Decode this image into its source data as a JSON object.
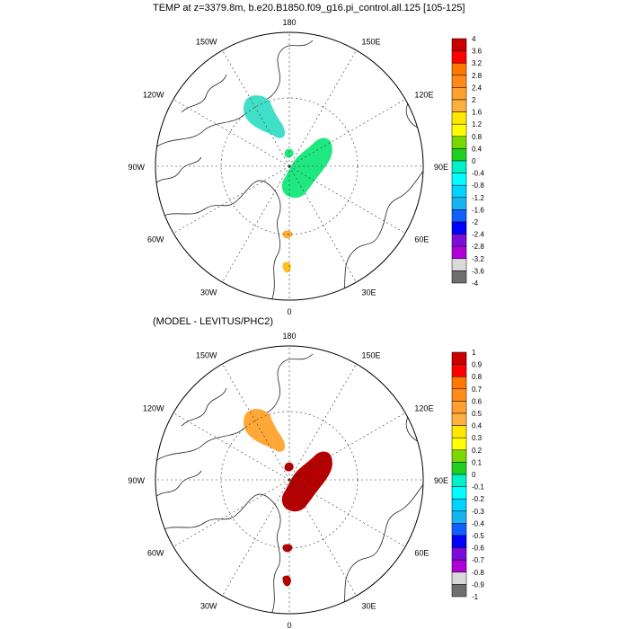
{
  "figure": {
    "top_title": "TEMP at z=3379.8m, b.e20.B1850.f09_g16.pi_control.all.125 [105-125]",
    "bottom_title": "(MODEL - LEVITUS/PHC2)"
  },
  "longitude_labels": [
    "180",
    "150E",
    "120E",
    "90E",
    "60E",
    "30E",
    "0",
    "30W",
    "60W",
    "90W",
    "120W",
    "150W"
  ],
  "colors": {
    "ramp": [
      "#6e6e6e",
      "#d9d9d9",
      "#e000e0",
      "#b000d8",
      "#7a0dd9",
      "#0000ff",
      "#1060ff",
      "#2892f0",
      "#18b4f0",
      "#00d4ff",
      "#00ffff",
      "#00f0c8",
      "#00e878",
      "#20d020",
      "#7ad800",
      "#ffff00",
      "#ffe800",
      "#ffcc30",
      "#ffb040",
      "#ffa030",
      "#ff8c1a",
      "#ff7800",
      "#ff3c00",
      "#ff0000",
      "#c80000"
    ]
  },
  "colorbar_top": {
    "labels": [
      "4",
      "3.6",
      "3.2",
      "2.8",
      "2.4",
      "2",
      "1.6",
      "1.2",
      "0.8",
      "0.4",
      "0",
      "-0.4",
      "-0.8",
      "-1.2",
      "-1.6",
      "-2",
      "-2.4",
      "-2.8",
      "-3.2",
      "-3.6",
      "-4"
    ]
  },
  "colorbar_bottom": {
    "labels": [
      "1",
      "0.9",
      "0.8",
      "0.7",
      "0.6",
      "0.5",
      "0.4",
      "0.3",
      "0.2",
      "0.1",
      "0",
      "-0.1",
      "-0.2",
      "-0.3",
      "-0.4",
      "-0.5",
      "-0.6",
      "-0.7",
      "-0.8",
      "-0.9",
      "-1"
    ]
  },
  "panels": {
    "top": {
      "blobs": [
        {
          "name": "canada-basin-blob",
          "color": "#40e0c8"
        },
        {
          "name": "eurasian-basin-blob",
          "color": "#20e880"
        },
        {
          "name": "fram-strait-blob",
          "color": "#ffb030"
        },
        {
          "name": "greenland-sea-blob",
          "color": "#ffc020"
        }
      ]
    },
    "bottom": {
      "blobs": [
        {
          "name": "canada-basin-blob",
          "color": "#ffa838"
        },
        {
          "name": "eurasian-basin-blob",
          "color": "#b40000"
        },
        {
          "name": "fram-strait-blob",
          "color": "#b40000"
        },
        {
          "name": "greenland-sea-blob",
          "color": "#b40000"
        }
      ]
    }
  }
}
